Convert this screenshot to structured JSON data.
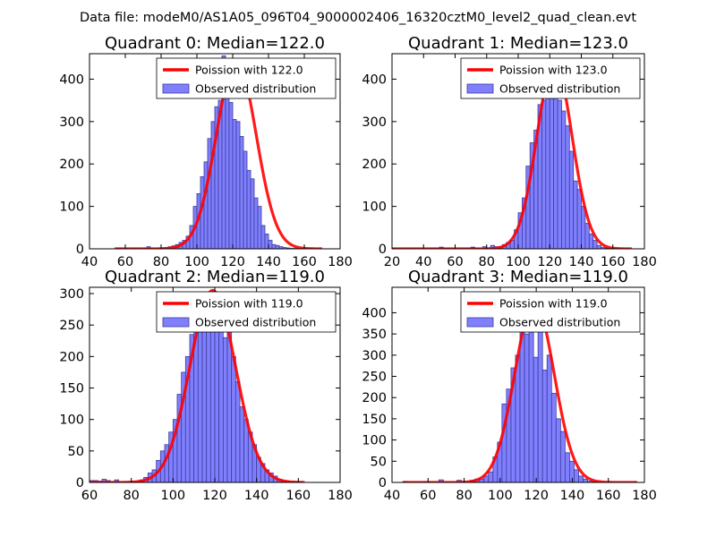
{
  "figure": {
    "suptitle": "Data file: modeM0/AS1A05_096T04_9000002406_16320cztM0_level2_quad_clean.evt"
  },
  "colors": {
    "hist_fill": "#8080ff",
    "hist_edge": "#3b3b9a",
    "model_line": "#ff0000",
    "legend_border": "#000000"
  },
  "chart_data": [
    {
      "type": "bar",
      "title": "Quadrant 0: Median=122.0",
      "xlim": [
        40,
        180
      ],
      "ylim": [
        0,
        460
      ],
      "xticks": [
        40,
        60,
        80,
        100,
        120,
        140,
        160,
        180
      ],
      "yticks": [
        0,
        100,
        200,
        300,
        400
      ],
      "bin_start": 56,
      "bin_width": 2,
      "values": [
        2,
        0,
        0,
        0,
        0,
        0,
        0,
        0,
        5,
        0,
        0,
        0,
        2,
        3,
        5,
        7,
        10,
        15,
        20,
        30,
        55,
        100,
        130,
        170,
        205,
        260,
        300,
        335,
        350,
        455,
        355,
        345,
        305,
        300,
        265,
        230,
        185,
        165,
        120,
        100,
        55,
        35,
        20,
        10,
        8,
        5,
        3,
        2,
        1,
        1,
        1,
        1,
        1,
        1,
        0,
        0,
        0
      ],
      "model": {
        "label": "Poission with 122.0",
        "mu": 122.0,
        "sigma": 11.1,
        "peak": 445,
        "x_range": [
          54,
          170
        ]
      },
      "hist_label": "Observed distribution"
    },
    {
      "type": "bar",
      "title": "Quadrant 1: Median=123.0",
      "xlim": [
        20,
        180
      ],
      "ylim": [
        0,
        460
      ],
      "xticks": [
        20,
        40,
        60,
        80,
        100,
        120,
        140,
        160,
        180
      ],
      "yticks": [
        0,
        100,
        200,
        300,
        400
      ],
      "bin_start": 20,
      "bin_width": 2.5,
      "values": [
        2,
        0,
        0,
        0,
        0,
        0,
        0,
        0,
        0,
        0,
        0,
        0,
        4,
        0,
        0,
        0,
        0,
        0,
        0,
        0,
        4,
        0,
        0,
        5,
        0,
        8,
        5,
        5,
        10,
        15,
        20,
        45,
        85,
        120,
        195,
        250,
        280,
        340,
        350,
        380,
        440,
        410,
        350,
        325,
        290,
        230,
        160,
        140,
        100,
        60,
        35,
        20,
        8,
        3,
        2,
        1,
        1,
        1,
        0,
        0,
        0,
        0,
        0,
        0
      ],
      "model": {
        "label": "Poission with 123.0",
        "mu": 123.0,
        "sigma": 11.1,
        "peak": 440,
        "x_range": [
          20,
          172
        ]
      },
      "hist_label": "Observed distribution"
    },
    {
      "type": "bar",
      "title": "Quadrant 2: Median=119.0",
      "xlim": [
        60,
        180
      ],
      "ylim": [
        0,
        310
      ],
      "xticks": [
        60,
        80,
        100,
        120,
        140,
        160,
        180
      ],
      "yticks": [
        0,
        50,
        100,
        150,
        200,
        250,
        300
      ],
      "bin_start": 60,
      "bin_width": 2,
      "values": [
        3,
        3,
        2,
        5,
        3,
        0,
        4,
        0,
        0,
        0,
        2,
        2,
        4,
        8,
        15,
        20,
        35,
        50,
        60,
        80,
        100,
        140,
        175,
        200,
        235,
        265,
        265,
        270,
        275,
        275,
        265,
        270,
        230,
        260,
        200,
        160,
        120,
        100,
        80,
        60,
        40,
        30,
        20,
        15,
        10,
        5,
        3,
        2,
        1,
        1,
        0,
        0,
        0,
        0,
        0,
        0,
        0,
        0,
        0,
        0
      ],
      "model": {
        "label": "Poission with 119.0",
        "mu": 119.0,
        "sigma": 10.9,
        "peak": 305,
        "x_range": [
          60,
          163
        ]
      },
      "hist_label": "Observed distribution"
    },
    {
      "type": "bar",
      "title": "Quadrant 3: Median=119.0",
      "xlim": [
        40,
        180
      ],
      "ylim": [
        0,
        460
      ],
      "xticks": [
        40,
        60,
        80,
        100,
        120,
        140,
        160,
        180
      ],
      "yticks": [
        0,
        50,
        100,
        150,
        200,
        250,
        300,
        350,
        400
      ],
      "bin_start": 46,
      "bin_width": 2.5,
      "values": [
        2,
        0,
        0,
        0,
        0,
        0,
        0,
        0,
        6,
        0,
        0,
        0,
        5,
        0,
        0,
        5,
        8,
        8,
        15,
        25,
        60,
        95,
        185,
        220,
        270,
        300,
        375,
        350,
        420,
        295,
        370,
        265,
        300,
        210,
        150,
        120,
        70,
        50,
        30,
        15,
        8,
        3,
        2,
        1,
        0,
        0,
        0,
        0,
        0,
        0,
        0,
        0
      ],
      "model": {
        "label": "Poission with 119.0",
        "mu": 119.0,
        "sigma": 10.9,
        "peak": 425,
        "x_range": [
          46,
          176
        ]
      },
      "hist_label": "Observed distribution"
    }
  ]
}
